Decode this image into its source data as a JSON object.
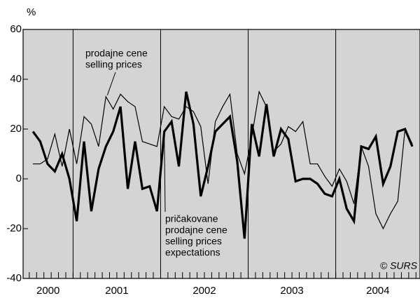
{
  "chart_data": {
    "type": "line",
    "y_label": "%",
    "categories": [
      "2000",
      null,
      null,
      null,
      null,
      null,
      "2001",
      null,
      null,
      null,
      null,
      null,
      null,
      null,
      null,
      null,
      null,
      null,
      "2002",
      null,
      null,
      null,
      null,
      null,
      null,
      null,
      null,
      null,
      null,
      null,
      "2003",
      null,
      null,
      null,
      null,
      null,
      null,
      null,
      null,
      null,
      null,
      null,
      "2004",
      null,
      null,
      null,
      null,
      null,
      null,
      null,
      null,
      null,
      null
    ],
    "series": [
      {
        "name": "prodajne cene selling prices",
        "color": "#000000",
        "line_width": 1.2,
        "values": [
          6,
          6,
          8,
          18,
          5,
          20,
          6,
          25,
          22,
          13,
          33,
          28,
          34,
          31,
          29,
          15,
          14,
          13,
          29,
          25,
          24,
          29,
          27,
          21,
          -2,
          23,
          29,
          34,
          10,
          2,
          17,
          35,
          29,
          11,
          14,
          21,
          19,
          23,
          6,
          6,
          1,
          -3,
          4,
          -1,
          -10,
          13,
          5,
          -14,
          -20,
          -14,
          -9,
          20,
          14
        ]
      },
      {
        "name": "pričakovane prodajne cene selling prices expectations",
        "color": "#000000",
        "line_width": 3.2,
        "values": [
          19,
          15,
          6,
          3,
          10,
          0,
          -17,
          15,
          -13,
          4,
          13,
          19,
          29,
          -4,
          15,
          -4,
          -3,
          -13,
          19,
          23,
          5,
          35,
          22,
          -7,
          5,
          19,
          22,
          25,
          7,
          -24,
          22,
          9,
          30,
          9,
          20,
          16,
          -1,
          0,
          0,
          -2,
          -6,
          -7,
          0,
          -12,
          -17,
          13,
          12,
          17,
          -2,
          5,
          19,
          20,
          13
        ]
      }
    ],
    "annotations": [
      {
        "lines": [
          "prodajne cene",
          "selling prices"
        ],
        "series": 0,
        "point": 10
      },
      {
        "lines": [
          "pričakovane",
          "prodajne cene",
          "selling prices",
          "expectations"
        ],
        "series": 1,
        "point": 18
      }
    ],
    "source": "© SURS",
    "ylim": [
      -40,
      60
    ],
    "yticks": [
      -40,
      -20,
      0,
      20,
      40,
      60
    ],
    "background": "#d4d4d4"
  }
}
